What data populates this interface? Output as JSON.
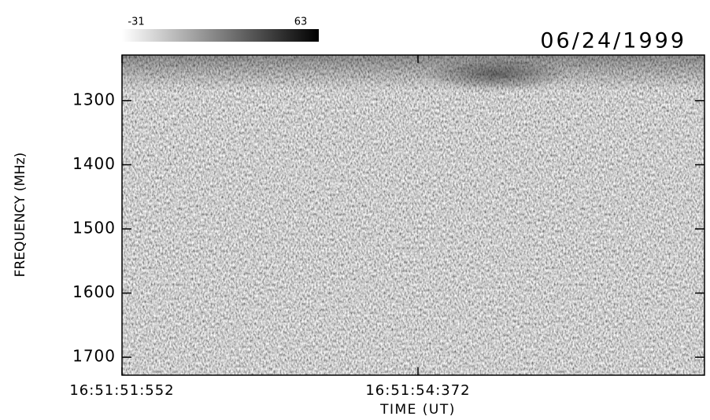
{
  "chart_data": {
    "type": "spectrogram",
    "title": "06/24/1999",
    "xlabel": "TIME (UT)",
    "ylabel": "FREQUENCY (MHz)",
    "xlim": [
      60711.552,
      60717.102
    ],
    "xticks": [
      {
        "value": 60711.552,
        "label": "16:51:51:552"
      },
      {
        "value": 60714.372,
        "label": "16:51:54:372"
      }
    ],
    "ylim": [
      1229,
      1728
    ],
    "y_inverted": true,
    "yticks": [
      1300,
      1400,
      1500,
      1600,
      1700
    ],
    "colorbar": {
      "min": -31,
      "max": 63,
      "colors": [
        "#ffffff",
        "#000000"
      ]
    }
  }
}
